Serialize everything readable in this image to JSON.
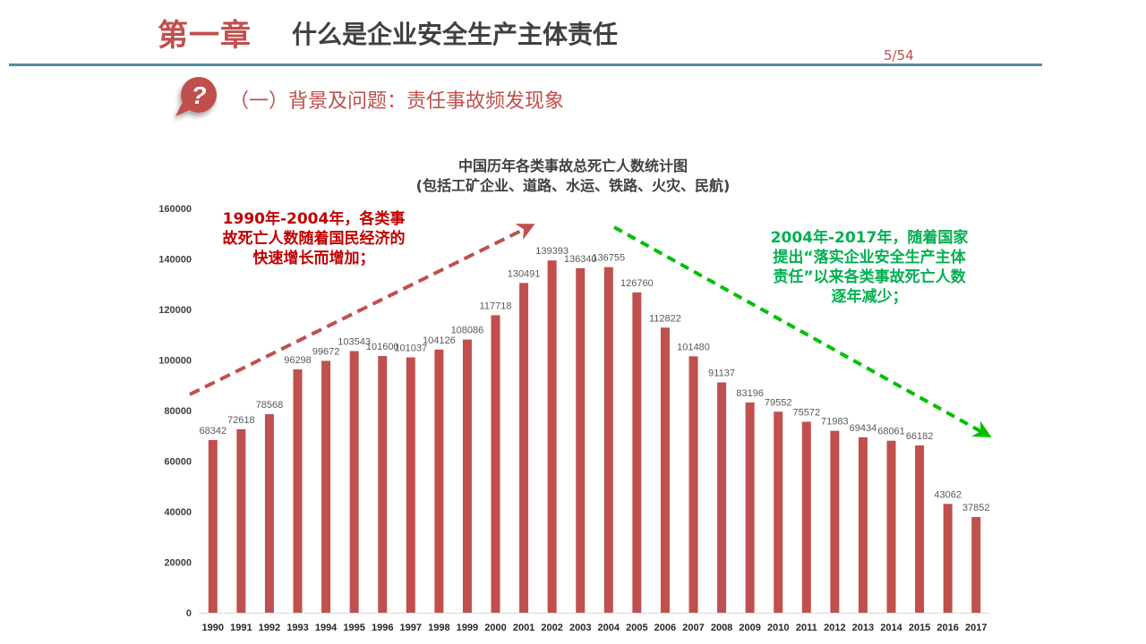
{
  "header": {
    "chapter": "第一章",
    "title": "什么是企业安全生产主体责任",
    "page": "5/54"
  },
  "section": {
    "icon": "question-bubble-icon",
    "title": "（一）背景及问题：责任事故频发现象"
  },
  "annotations": {
    "rising": "1990年-2004年，各类事故死亡人数随着国民经济的快速增长而增加；",
    "falling": "2004年-2017年，随着国家提出“落实企业安全生产主体责任”以来各类事故死亡人数逐年减少；"
  },
  "colors": {
    "accent": "#c0504d",
    "bar": "#c0504d",
    "rule": "#5a8aa0",
    "rising_arrow": "#c0504d",
    "falling_arrow": "#00c000"
  },
  "chart_data": {
    "type": "bar",
    "title": "中国历年各类事故总死亡人数统计图",
    "subtitle": "(包括工矿企业、道路、水运、铁路、火灾、民航)",
    "categories": [
      "1990",
      "1991",
      "1992",
      "1993",
      "1994",
      "1995",
      "1996",
      "1997",
      "1998",
      "1999",
      "2000",
      "2001",
      "2002",
      "2003",
      "2004",
      "2005",
      "2006",
      "2007",
      "2008",
      "2009",
      "2010",
      "2011",
      "2012",
      "2013",
      "2014",
      "2015",
      "2016",
      "2017"
    ],
    "values": [
      68342,
      72618,
      78568,
      96298,
      99672,
      103543,
      101600,
      101037,
      104126,
      108086,
      117718,
      130491,
      139393,
      136340,
      136755,
      126760,
      112822,
      101480,
      91137,
      83196,
      79552,
      75572,
      71983,
      69434,
      68061,
      66182,
      43062,
      37852
    ],
    "ylim": [
      0,
      160000
    ],
    "yticks": [
      0,
      20000,
      40000,
      60000,
      80000,
      100000,
      120000,
      140000,
      160000
    ],
    "grid": false,
    "legend": "none"
  }
}
